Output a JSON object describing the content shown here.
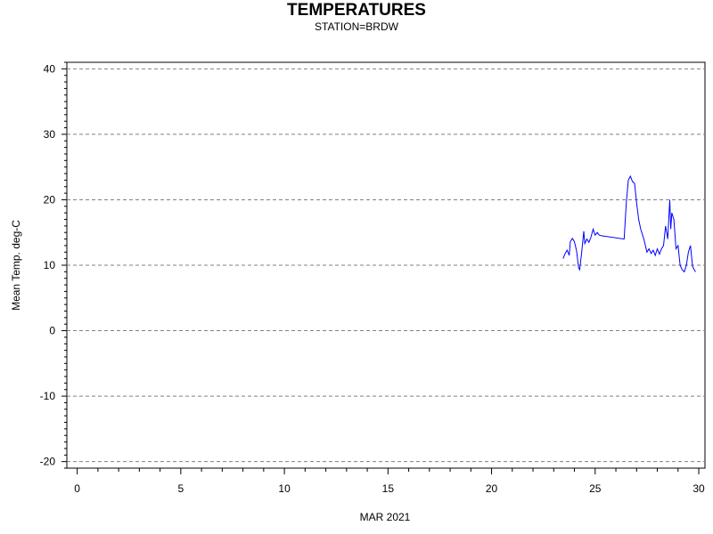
{
  "chart_data": {
    "type": "line",
    "title": "TEMPERATURES",
    "subtitle": "STATION=BRDW",
    "xlabel": "MAR 2021",
    "ylabel": "Mean Temp. deg-C",
    "xlim": [
      -0.5,
      30.3
    ],
    "ylim": [
      -21,
      41
    ],
    "xticks": [
      0,
      5,
      10,
      15,
      20,
      25,
      30
    ],
    "xtick_labels": [
      "0",
      "5",
      "10",
      "15",
      "20",
      "25",
      "30"
    ],
    "yticks": [
      -20,
      -10,
      0,
      10,
      20,
      30,
      40
    ],
    "ytick_labels": [
      "-20",
      "-10",
      "0",
      "10",
      "20",
      "30",
      "40"
    ],
    "grid": "horizontal-dashed",
    "series": [
      {
        "color": "#0000ff",
        "x": [
          23.45,
          23.55,
          23.65,
          23.75,
          23.8,
          23.9,
          24.0,
          24.1,
          24.2,
          24.25,
          24.35,
          24.45,
          24.5,
          24.6,
          24.7,
          24.8,
          24.9,
          25.0,
          25.1,
          25.2,
          25.3,
          26.4,
          26.5,
          26.6,
          26.7,
          26.8,
          26.9,
          27.0,
          27.1,
          27.2,
          27.35,
          27.5,
          27.6,
          27.7,
          27.8,
          27.9,
          28.0,
          28.1,
          28.2,
          28.3,
          28.4,
          28.5,
          28.6,
          28.65,
          28.7,
          28.8,
          28.9,
          29.0,
          29.1,
          29.2,
          29.3,
          29.4,
          29.5,
          29.6,
          29.7,
          29.8,
          29.85
        ],
        "y": [
          11.0,
          11.8,
          12.3,
          11.5,
          13.6,
          14.1,
          13.6,
          12.2,
          9.6,
          9.3,
          12.0,
          15.2,
          13.3,
          14.0,
          13.5,
          14.3,
          15.5,
          14.6,
          15.0,
          14.6,
          14.5,
          14.0,
          19.5,
          23.0,
          23.6,
          22.8,
          22.5,
          19.5,
          17.0,
          15.5,
          14.0,
          12.0,
          12.5,
          11.8,
          12.3,
          11.5,
          12.5,
          11.7,
          12.5,
          13.0,
          16.0,
          14.0,
          20.0,
          15.5,
          18.0,
          17.0,
          12.5,
          13.0,
          10.0,
          9.3,
          9.0,
          10.0,
          12.0,
          13.0,
          9.8,
          9.2,
          9.0
        ]
      }
    ]
  }
}
